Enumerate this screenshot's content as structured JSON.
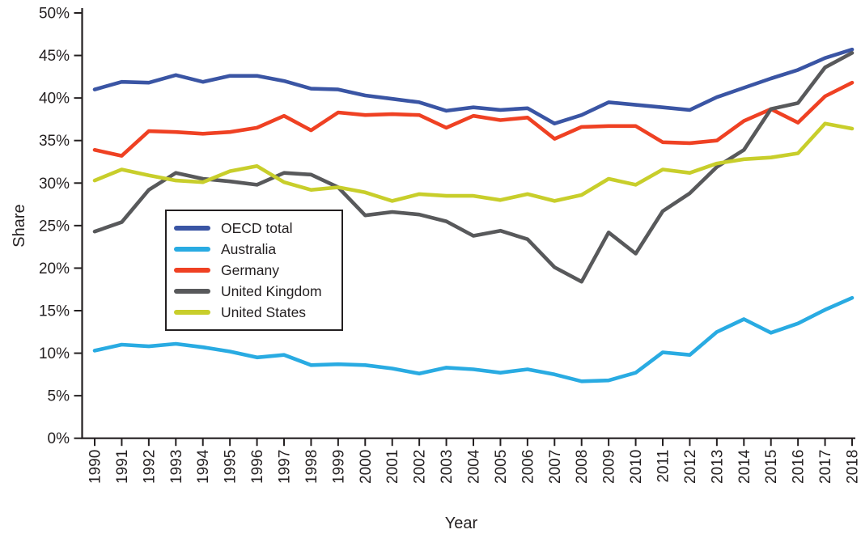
{
  "figure": {
    "ylabel": "Share",
    "xlabel": "Year"
  },
  "chart_data": {
    "type": "line",
    "x_tick_labels": [
      "1990",
      "1991",
      "1992",
      "1993",
      "1994",
      "1995",
      "1996",
      "1997",
      "1998",
      "1999",
      "2000",
      "2001",
      "2002",
      "2003",
      "2004",
      "2005",
      "2006",
      "2007",
      "2008",
      "2009",
      "2010",
      "2011",
      "2012",
      "2013",
      "2014",
      "2015",
      "2016",
      "2017",
      "2018"
    ],
    "y_tick_labels": [
      "0%",
      "5%",
      "10%",
      "15%",
      "20%",
      "25%",
      "30%",
      "35%",
      "40%",
      "45%",
      "50%"
    ],
    "ylim": [
      0,
      50
    ],
    "ytick_step": 5,
    "grid": false,
    "legend_position": "inside-left",
    "xlabel": "Year",
    "ylabel": "Share",
    "series": [
      {
        "name": "OECD total",
        "color": "#3A55A4",
        "values": [
          41.0,
          41.9,
          41.8,
          42.7,
          41.9,
          42.6,
          42.6,
          42.0,
          41.1,
          41.0,
          40.3,
          39.9,
          39.5,
          38.5,
          38.9,
          38.6,
          38.8,
          37.0,
          38.0,
          39.5,
          39.2,
          38.9,
          38.6,
          40.1,
          41.2,
          42.3,
          43.3,
          44.7,
          45.7
        ]
      },
      {
        "name": "Australia",
        "color": "#29ABE2",
        "values": [
          10.3,
          11.0,
          10.8,
          11.1,
          10.7,
          10.2,
          9.5,
          9.8,
          8.6,
          8.7,
          8.6,
          8.2,
          7.6,
          8.3,
          8.1,
          7.7,
          8.1,
          7.5,
          6.7,
          6.8,
          7.7,
          10.1,
          9.8,
          12.5,
          14.0,
          12.4,
          13.5,
          15.1,
          16.5
        ]
      },
      {
        "name": "Germany",
        "color": "#EF4123",
        "values": [
          33.9,
          33.2,
          36.1,
          36.0,
          35.8,
          36.0,
          36.5,
          37.9,
          36.2,
          38.3,
          38.0,
          38.1,
          38.0,
          36.5,
          37.9,
          37.4,
          37.7,
          35.2,
          36.6,
          36.7,
          36.7,
          34.8,
          34.7,
          35.0,
          37.3,
          38.7,
          37.1,
          40.2,
          41.8
        ]
      },
      {
        "name": "United Kingdom",
        "color": "#58595B",
        "values": [
          24.3,
          25.4,
          29.2,
          31.2,
          30.5,
          30.2,
          29.8,
          31.2,
          31.0,
          29.5,
          26.2,
          26.6,
          26.3,
          25.5,
          23.8,
          24.4,
          23.4,
          20.1,
          18.4,
          24.2,
          21.7,
          26.7,
          28.8,
          31.9,
          33.9,
          38.7,
          39.4,
          43.6,
          45.3
        ]
      },
      {
        "name": "United States",
        "color": "#C8CE2B",
        "values": [
          30.3,
          31.6,
          30.9,
          30.3,
          30.1,
          31.4,
          32.0,
          30.1,
          29.2,
          29.5,
          28.9,
          27.9,
          28.7,
          28.5,
          28.5,
          28.0,
          28.7,
          27.9,
          28.6,
          30.5,
          29.8,
          31.6,
          31.2,
          32.3,
          32.8,
          33.0,
          33.5,
          37.0,
          36.4
        ]
      }
    ]
  }
}
